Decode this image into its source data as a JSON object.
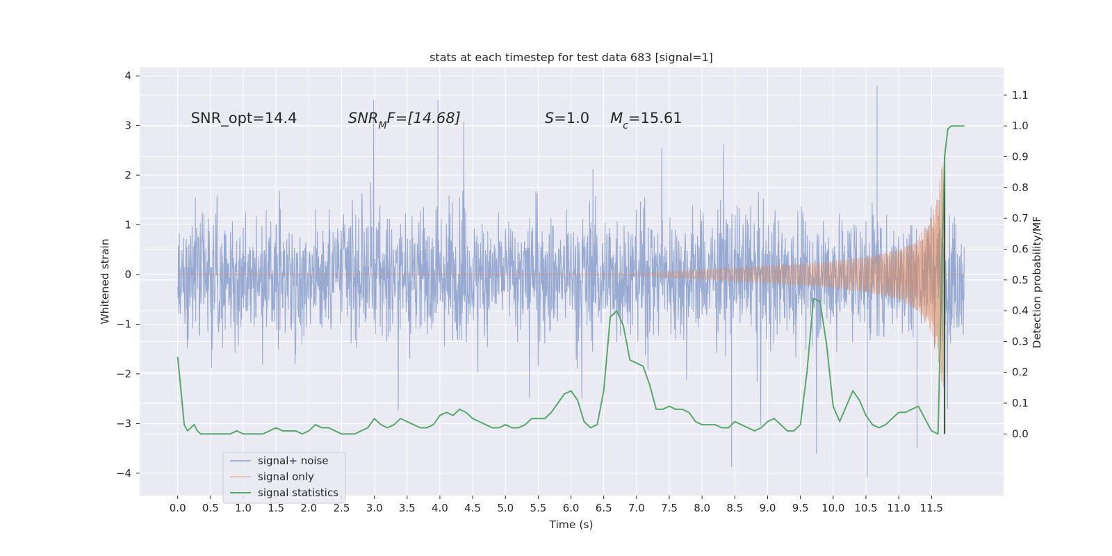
{
  "chart_data": {
    "type": "line",
    "title": "stats at each timestep for test data 683 [signal=1]",
    "xlabel": "Time (s)",
    "ylabel": "Whitened strain",
    "ylabel_right": "Detection probability/MF",
    "xlim": [
      -0.58,
      12.6
    ],
    "ylim": [
      -4.45,
      4.17
    ],
    "ylim_right": [
      -0.2,
      1.19
    ],
    "x_ticks": [
      "0.0",
      "0.5",
      "1.0",
      "1.5",
      "2.0",
      "2.5",
      "3.0",
      "3.5",
      "4.0",
      "4.5",
      "5.0",
      "5.5",
      "6.0",
      "6.5",
      "7.0",
      "7.5",
      "8.0",
      "8.5",
      "9.0",
      "9.5",
      "10.0",
      "10.5",
      "11.0",
      "11.5"
    ],
    "y_ticks": [
      "−4",
      "−3",
      "−2",
      "−1",
      "0",
      "1",
      "2",
      "3",
      "4"
    ],
    "y_ticks_right": [
      "0.0",
      "0.1",
      "0.2",
      "0.3",
      "0.4",
      "0.5",
      "0.6",
      "0.7",
      "0.8",
      "0.9",
      "1.0",
      "1.1"
    ],
    "annotations": [
      {
        "id": "snr_opt",
        "text": "SNR_opt=14.4",
        "x": 0.2,
        "y": 3.05
      },
      {
        "id": "snr_mf",
        "text": "F=[14.68]",
        "x": 2.6,
        "y": 3.05
      },
      {
        "id": "s",
        "text": "=1.0",
        "x": 5.6,
        "y": 3.05
      },
      {
        "id": "mc",
        "text": "=15.61",
        "x": 6.6,
        "y": 3.05
      }
    ],
    "merger_time": 11.7,
    "noise_end_time": 12.0,
    "series": [
      {
        "name": "signal+ noise",
        "axis": "left",
        "color": "#8a9fcb",
        "typical_amplitude": 1.75,
        "peak_values": [
          {
            "x": 3.97,
            "y": 3.51
          },
          {
            "x": 10.67,
            "y": 3.8
          },
          {
            "x": 10.52,
            "y": -4.08
          },
          {
            "x": 8.45,
            "y": -3.87
          },
          {
            "x": 11.28,
            "y": -3.5
          }
        ]
      },
      {
        "name": "signal only",
        "axis": "left",
        "color": "#dd8452",
        "envelope": [
          [
            0.0,
            0.0
          ],
          [
            7.0,
            0.01
          ],
          [
            7.5,
            0.06
          ],
          [
            8.0,
            0.1
          ],
          [
            8.5,
            0.14
          ],
          [
            9.0,
            0.18
          ],
          [
            9.5,
            0.22
          ],
          [
            10.0,
            0.28
          ],
          [
            10.5,
            0.36
          ],
          [
            11.0,
            0.5
          ],
          [
            11.3,
            0.75
          ],
          [
            11.5,
            1.2
          ],
          [
            11.6,
            1.7
          ],
          [
            11.65,
            2.1
          ],
          [
            11.7,
            2.4
          ],
          [
            11.71,
            0.0
          ]
        ]
      },
      {
        "name": "signal statistics",
        "axis": "right",
        "color": "#55a868",
        "x": [
          0.0,
          0.05,
          0.1,
          0.15,
          0.2,
          0.25,
          0.3,
          0.35,
          0.4,
          0.45,
          0.5,
          0.6,
          0.7,
          0.8,
          0.9,
          1.0,
          1.1,
          1.2,
          1.3,
          1.4,
          1.5,
          1.6,
          1.7,
          1.8,
          1.9,
          2.0,
          2.1,
          2.2,
          2.3,
          2.4,
          2.5,
          2.6,
          2.7,
          2.8,
          2.9,
          3.0,
          3.1,
          3.2,
          3.3,
          3.4,
          3.5,
          3.6,
          3.7,
          3.8,
          3.9,
          4.0,
          4.1,
          4.2,
          4.3,
          4.4,
          4.5,
          4.6,
          4.7,
          4.8,
          4.9,
          5.0,
          5.1,
          5.2,
          5.3,
          5.4,
          5.5,
          5.6,
          5.7,
          5.8,
          5.9,
          6.0,
          6.1,
          6.2,
          6.3,
          6.4,
          6.5,
          6.6,
          6.7,
          6.8,
          6.9,
          7.0,
          7.1,
          7.2,
          7.3,
          7.4,
          7.5,
          7.6,
          7.7,
          7.8,
          7.9,
          8.0,
          8.1,
          8.2,
          8.3,
          8.4,
          8.5,
          8.6,
          8.7,
          8.8,
          8.9,
          9.0,
          9.1,
          9.2,
          9.3,
          9.4,
          9.5,
          9.6,
          9.7,
          9.8,
          9.9,
          10.0,
          10.1,
          10.2,
          10.3,
          10.4,
          10.5,
          10.6,
          10.7,
          10.8,
          10.9,
          11.0,
          11.1,
          11.2,
          11.3,
          11.4,
          11.5,
          11.6,
          11.65,
          11.7,
          11.75,
          11.8,
          11.85,
          11.9,
          11.95,
          12.0
        ],
        "values": [
          0.25,
          0.14,
          0.03,
          0.01,
          0.02,
          0.03,
          0.01,
          0.0,
          0.0,
          0.0,
          0.0,
          0.0,
          0.0,
          0.0,
          0.01,
          0.0,
          0.0,
          0.0,
          0.0,
          0.01,
          0.02,
          0.01,
          0.01,
          0.01,
          0.0,
          0.01,
          0.03,
          0.02,
          0.02,
          0.01,
          0.0,
          0.0,
          0.0,
          0.01,
          0.02,
          0.05,
          0.03,
          0.02,
          0.03,
          0.05,
          0.04,
          0.03,
          0.02,
          0.02,
          0.03,
          0.06,
          0.07,
          0.06,
          0.08,
          0.07,
          0.05,
          0.04,
          0.03,
          0.02,
          0.02,
          0.03,
          0.02,
          0.02,
          0.03,
          0.05,
          0.05,
          0.05,
          0.07,
          0.1,
          0.13,
          0.14,
          0.11,
          0.04,
          0.02,
          0.03,
          0.14,
          0.38,
          0.4,
          0.35,
          0.24,
          0.23,
          0.22,
          0.16,
          0.08,
          0.08,
          0.09,
          0.08,
          0.08,
          0.07,
          0.04,
          0.03,
          0.03,
          0.03,
          0.02,
          0.02,
          0.04,
          0.03,
          0.02,
          0.01,
          0.02,
          0.04,
          0.05,
          0.03,
          0.01,
          0.01,
          0.03,
          0.2,
          0.44,
          0.43,
          0.29,
          0.09,
          0.04,
          0.09,
          0.14,
          0.11,
          0.06,
          0.03,
          0.02,
          0.03,
          0.05,
          0.07,
          0.07,
          0.08,
          0.09,
          0.05,
          0.01,
          0.0,
          0.46,
          0.9,
          0.99,
          1.0,
          1.0,
          1.0,
          1.0,
          1.0
        ]
      }
    ],
    "legend": {
      "placement": "bottom-left",
      "entries": [
        "signal+ noise",
        "signal only",
        "signal statistics"
      ]
    }
  },
  "colors": {
    "axes_bg": "#eaeaf2",
    "grid": "#ffffff",
    "merger_line": "#2f4f3a"
  }
}
